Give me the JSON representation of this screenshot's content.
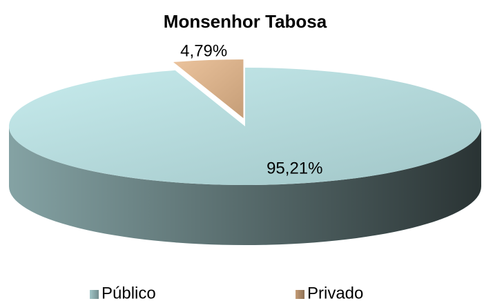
{
  "chart_data": {
    "type": "pie",
    "title": "Monsenhor Tabosa",
    "categories": [
      "Público",
      "Privado"
    ],
    "values": [
      95.21,
      4.79
    ],
    "value_labels": [
      "95,21%",
      "4,79%"
    ],
    "colors": [
      "#bde8ea",
      "#e8b98c"
    ],
    "legend": "bottom"
  }
}
